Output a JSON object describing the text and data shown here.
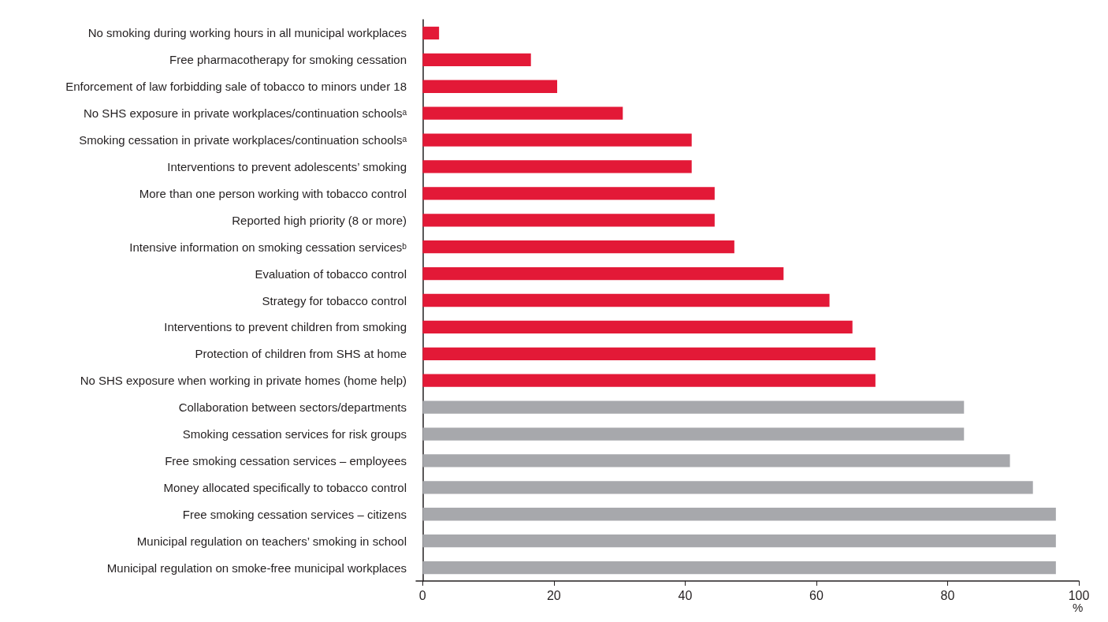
{
  "chart_data": {
    "type": "bar",
    "orientation": "horizontal",
    "xlabel": "%",
    "categories": [
      "No smoking during working hours in all municipal workplaces",
      "Free pharmacotherapy for smoking cessation",
      "Enforcement of law forbidding sale of tobacco to minors under 18",
      "No SHS exposure in private workplaces/continuation schoolsᵃ",
      "Smoking cessation in private workplaces/continuation schoolsᵃ",
      "Interventions to prevent adolescents’ smoking",
      "More than one person working with tobacco control",
      "Reported high priority (8 or more)",
      "Intensive information on smoking cessation servicesᵇ",
      "Evaluation of tobacco control",
      "Strategy for tobacco control",
      "Interventions to prevent children from smoking",
      "Protection of children from SHS at home",
      "No SHS exposure when working in private homes (home help)",
      "Collaboration between sectors/departments",
      "Smoking cessation services for risk groups",
      "Free smoking cessation services – employees",
      "Money allocated specifically to tobacco control",
      "Free smoking cessation services – citizens",
      "Municipal regulation on teachers’ smoking in school",
      "Municipal regulation on smoke-free municipal workplaces"
    ],
    "values": [
      2.5,
      16.5,
      20.5,
      30.5,
      41,
      41,
      44.5,
      44.5,
      47.5,
      55,
      62,
      65.5,
      69,
      69,
      82.5,
      82.5,
      89.5,
      93,
      96.5,
      96.5,
      96.5
    ],
    "colors": [
      "#e31937",
      "#e31937",
      "#e31937",
      "#e31937",
      "#e31937",
      "#e31937",
      "#e31937",
      "#e31937",
      "#e31937",
      "#e31937",
      "#e31937",
      "#e31937",
      "#e31937",
      "#e31937",
      "#a7a8ac",
      "#a7a8ac",
      "#a7a8ac",
      "#a7a8ac",
      "#a7a8ac",
      "#a7a8ac",
      "#a7a8ac"
    ],
    "xlim": [
      -1,
      100
    ],
    "xticks": [
      0,
      20,
      40,
      60,
      80,
      100
    ],
    "grid": false
  }
}
